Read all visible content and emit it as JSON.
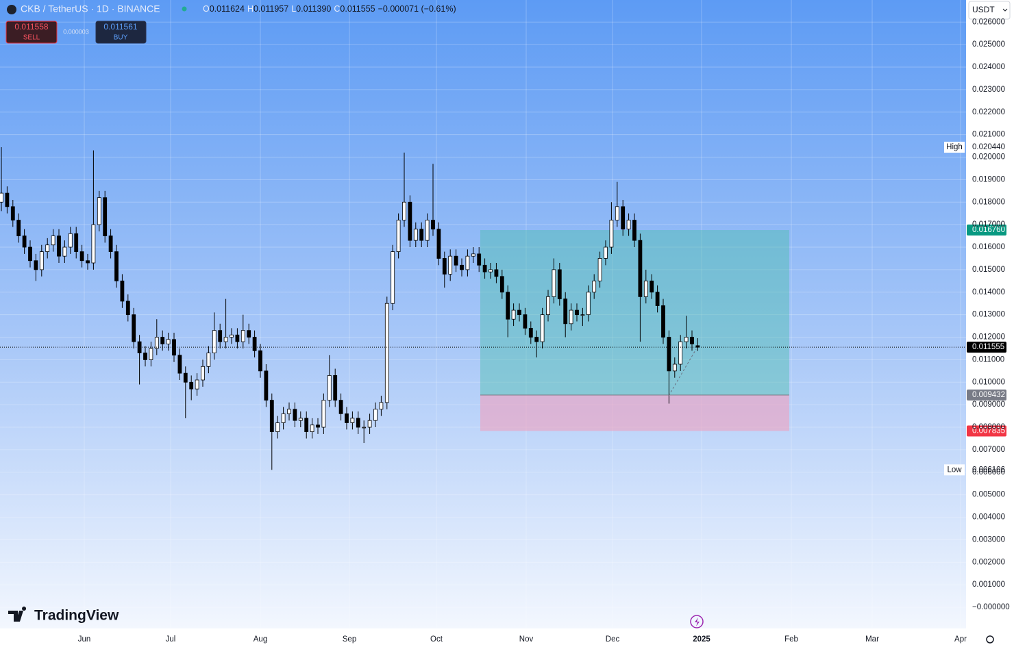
{
  "header": {
    "symbol": "CKB / TetherUS · 1D · BINANCE",
    "ohlc": [
      {
        "key": "O",
        "value": "0.011624"
      },
      {
        "key": "H",
        "value": "0.011957"
      },
      {
        "key": "L",
        "value": "0.011390"
      },
      {
        "key": "C",
        "value": "0.011555"
      }
    ],
    "change": "−0.000071 (−0.61%)"
  },
  "trade": {
    "sell_price": "0.011558",
    "sell_label": "SELL",
    "spread": "0.000003",
    "buy_price": "0.011561",
    "buy_label": "BUY"
  },
  "currency": "USDT",
  "brand": "TradingView",
  "chart_data": {
    "type": "candlestick",
    "up_color": "#ffffff",
    "down_color": "#000000",
    "open": [
      0.018,
      0.0184,
      0.0178,
      0.0172,
      0.0165,
      0.016,
      0.0154,
      0.015,
      0.0158,
      0.0161,
      0.0165,
      0.0156,
      0.016,
      0.0166,
      0.0158,
      0.0154,
      0.0153,
      0.017,
      0.0182,
      0.0165,
      0.0158,
      0.0145,
      0.0136,
      0.013,
      0.0118,
      0.0113,
      0.011,
      0.0115,
      0.012,
      0.0117,
      0.0119,
      0.0112,
      0.0104,
      0.01,
      0.0097,
      0.0101,
      0.0107,
      0.0113,
      0.0123,
      0.0118,
      0.012,
      0.0121,
      0.0118,
      0.0123,
      0.012,
      0.0114,
      0.0105,
      0.0092,
      0.0078,
      0.0082,
      0.0086,
      0.0088,
      0.0083,
      0.0084,
      0.0078,
      0.0081,
      0.008,
      0.0092,
      0.0103,
      0.0092,
      0.0086,
      0.0082,
      0.0084,
      0.008,
      0.008,
      0.0083,
      0.0088,
      0.0091,
      0.0135,
      0.0158,
      0.0172,
      0.018,
      0.0163,
      0.0168,
      0.0163,
      0.0172,
      0.0168,
      0.0155,
      0.0148,
      0.0156,
      0.0152,
      0.015,
      0.0156,
      0.0157,
      0.0152,
      0.0149,
      0.015,
      0.0147,
      0.014,
      0.0128,
      0.0132,
      0.013,
      0.0124,
      0.012,
      0.0118,
      0.013,
      0.0138,
      0.015,
      0.0137,
      0.0126,
      0.0132,
      0.013,
      0.013,
      0.014,
      0.0145,
      0.0155,
      0.016,
      0.0172,
      0.0178,
      0.0168,
      0.0172,
      0.0163,
      0.0138,
      0.0145,
      0.014,
      0.0134,
      0.012,
      0.0105,
      0.0108,
      0.0118,
      0.012,
      0.011624
    ],
    "high": [
      0.02044,
      0.0187,
      0.0181,
      0.0175,
      0.0168,
      0.0163,
      0.0157,
      0.0161,
      0.0164,
      0.0168,
      0.0168,
      0.0163,
      0.0169,
      0.0169,
      0.0161,
      0.0157,
      0.0203,
      0.0185,
      0.0185,
      0.0168,
      0.0161,
      0.0148,
      0.0139,
      0.0133,
      0.0121,
      0.0116,
      0.0118,
      0.0128,
      0.0123,
      0.0122,
      0.0122,
      0.0115,
      0.0107,
      0.0103,
      0.0104,
      0.011,
      0.0116,
      0.0131,
      0.0126,
      0.0137,
      0.0124,
      0.0124,
      0.013,
      0.0126,
      0.0123,
      0.0117,
      0.0108,
      0.0095,
      0.0085,
      0.0089,
      0.0091,
      0.0091,
      0.0087,
      0.0087,
      0.0084,
      0.0084,
      0.0095,
      0.0112,
      0.0106,
      0.0095,
      0.0089,
      0.0087,
      0.0087,
      0.0083,
      0.0086,
      0.0091,
      0.0094,
      0.0138,
      0.0161,
      0.0175,
      0.0202,
      0.0183,
      0.0171,
      0.0171,
      0.0175,
      0.0197,
      0.0171,
      0.0158,
      0.0159,
      0.0159,
      0.0155,
      0.0159,
      0.016,
      0.016,
      0.0155,
      0.0153,
      0.0153,
      0.015,
      0.0143,
      0.0135,
      0.0135,
      0.0133,
      0.0127,
      0.0123,
      0.0133,
      0.0141,
      0.0155,
      0.0153,
      0.014,
      0.0135,
      0.0135,
      0.0133,
      0.0143,
      0.0148,
      0.0158,
      0.0163,
      0.018,
      0.0189,
      0.0181,
      0.0175,
      0.0175,
      0.0166,
      0.015,
      0.0148,
      0.0143,
      0.0137,
      0.0123,
      0.0111,
      0.0121,
      0.01295,
      0.0123,
      0.011957
    ],
    "low": [
      0.0176,
      0.0175,
      0.0169,
      0.0162,
      0.0157,
      0.0151,
      0.0145,
      0.0147,
      0.0155,
      0.0158,
      0.0153,
      0.0153,
      0.0157,
      0.0155,
      0.0151,
      0.015,
      0.015,
      0.0167,
      0.0162,
      0.0155,
      0.0142,
      0.0133,
      0.0127,
      0.0115,
      0.0099,
      0.0107,
      0.0107,
      0.0112,
      0.0114,
      0.0114,
      0.0109,
      0.0101,
      0.0084,
      0.0092,
      0.0094,
      0.0098,
      0.0104,
      0.011,
      0.0115,
      0.0115,
      0.0117,
      0.0115,
      0.0115,
      0.0117,
      0.0111,
      0.0102,
      0.0089,
      0.006106,
      0.0075,
      0.0079,
      0.0083,
      0.008,
      0.008,
      0.0075,
      0.0075,
      0.0077,
      0.0077,
      0.0089,
      0.0089,
      0.0083,
      0.0079,
      0.0079,
      0.0077,
      0.0073,
      0.0077,
      0.008,
      0.0085,
      0.0088,
      0.0132,
      0.0155,
      0.0169,
      0.016,
      0.016,
      0.016,
      0.016,
      0.0165,
      0.0152,
      0.0142,
      0.0145,
      0.0149,
      0.0147,
      0.0147,
      0.0153,
      0.0149,
      0.0146,
      0.0146,
      0.0144,
      0.0137,
      0.012,
      0.0125,
      0.0127,
      0.0121,
      0.0117,
      0.0111,
      0.0115,
      0.0127,
      0.0135,
      0.0134,
      0.012,
      0.0123,
      0.0127,
      0.0125,
      0.0127,
      0.0137,
      0.0142,
      0.0152,
      0.0157,
      0.0169,
      0.0165,
      0.0165,
      0.016,
      0.0118,
      0.0135,
      0.0137,
      0.0131,
      0.0117,
      0.00905,
      0.0102,
      0.0105,
      0.0115,
      0.0114,
      0.01139
    ],
    "close": [
      0.0184,
      0.0178,
      0.0172,
      0.0165,
      0.016,
      0.0154,
      0.015,
      0.0158,
      0.0161,
      0.0165,
      0.0156,
      0.016,
      0.0166,
      0.0158,
      0.0154,
      0.0153,
      0.017,
      0.0182,
      0.0165,
      0.0158,
      0.0145,
      0.0136,
      0.013,
      0.0118,
      0.0113,
      0.011,
      0.0115,
      0.012,
      0.0117,
      0.0119,
      0.0112,
      0.0104,
      0.01,
      0.0097,
      0.0101,
      0.0107,
      0.0113,
      0.0123,
      0.0118,
      0.012,
      0.0121,
      0.0118,
      0.0123,
      0.012,
      0.0114,
      0.0105,
      0.0092,
      0.0078,
      0.0082,
      0.0086,
      0.0088,
      0.0083,
      0.0084,
      0.0078,
      0.0081,
      0.008,
      0.0092,
      0.0103,
      0.0092,
      0.0086,
      0.0082,
      0.0084,
      0.008,
      0.008,
      0.0083,
      0.0088,
      0.0091,
      0.0135,
      0.0158,
      0.0172,
      0.018,
      0.0163,
      0.0168,
      0.0163,
      0.0172,
      0.0168,
      0.0155,
      0.0148,
      0.0156,
      0.0152,
      0.015,
      0.0156,
      0.0157,
      0.0152,
      0.0149,
      0.015,
      0.0147,
      0.014,
      0.0128,
      0.0132,
      0.013,
      0.0124,
      0.012,
      0.0118,
      0.013,
      0.0138,
      0.015,
      0.0137,
      0.0126,
      0.0132,
      0.013,
      0.013,
      0.014,
      0.0145,
      0.0155,
      0.016,
      0.0172,
      0.0178,
      0.0168,
      0.0172,
      0.0163,
      0.0138,
      0.0145,
      0.014,
      0.0134,
      0.012,
      0.0105,
      0.0108,
      0.0118,
      0.012,
      0.0117,
      0.011555
    ],
    "x_labels": [
      "Jun",
      "Jul",
      "Aug",
      "Sep",
      "Oct",
      "Nov",
      "Dec",
      "2025",
      "Feb",
      "Mar",
      "Apr"
    ],
    "ylim": [
      -0.00094,
      0.02698
    ],
    "yticks": [
      {
        "value": 0,
        "label": "−0.000000"
      },
      {
        "value": 0.001,
        "label": "0.001000"
      },
      {
        "value": 0.002,
        "label": "0.002000"
      },
      {
        "value": 0.003,
        "label": "0.003000"
      },
      {
        "value": 0.004,
        "label": "0.004000"
      },
      {
        "value": 0.005,
        "label": "0.005000"
      },
      {
        "value": 0.006,
        "label": "0.006000"
      },
      {
        "value": 0.007,
        "label": "0.007000"
      },
      {
        "value": 0.008,
        "label": "0.008000"
      },
      {
        "value": 0.009,
        "label": "0.009000"
      },
      {
        "value": 0.01,
        "label": "0.010000"
      },
      {
        "value": 0.011,
        "label": "0.011000"
      },
      {
        "value": 0.012,
        "label": "0.012000"
      },
      {
        "value": 0.013,
        "label": "0.013000"
      },
      {
        "value": 0.014,
        "label": "0.014000"
      },
      {
        "value": 0.015,
        "label": "0.015000"
      },
      {
        "value": 0.016,
        "label": "0.016000"
      },
      {
        "value": 0.017,
        "label": "0.017000"
      },
      {
        "value": 0.018,
        "label": "0.018000"
      },
      {
        "value": 0.019,
        "label": "0.019000"
      },
      {
        "value": 0.02,
        "label": "0.020000"
      },
      {
        "value": 0.021,
        "label": "0.021000"
      },
      {
        "value": 0.022,
        "label": "0.022000"
      },
      {
        "value": 0.023,
        "label": "0.023000"
      },
      {
        "value": 0.024,
        "label": "0.024000"
      },
      {
        "value": 0.025,
        "label": "0.025000"
      },
      {
        "value": 0.026,
        "label": "0.026000"
      }
    ],
    "grid": true,
    "price_lines": [
      {
        "name": "High",
        "value": 0.02044,
        "value_label": "0.020440"
      },
      {
        "name": "Low",
        "value": 0.006106,
        "value_label": "0.006106"
      },
      {
        "value": 0.011555,
        "value_label": "0.011555",
        "color": "#000000"
      }
    ],
    "position": {
      "target": 0.01676,
      "target_label": "0.016760",
      "target_color": "#089981",
      "entry": 0.009432,
      "entry_label": "0.009432",
      "entry_color": "#787b86",
      "stop": 0.007835,
      "stop_label": "0.007835",
      "stop_color": "#f23645"
    }
  }
}
